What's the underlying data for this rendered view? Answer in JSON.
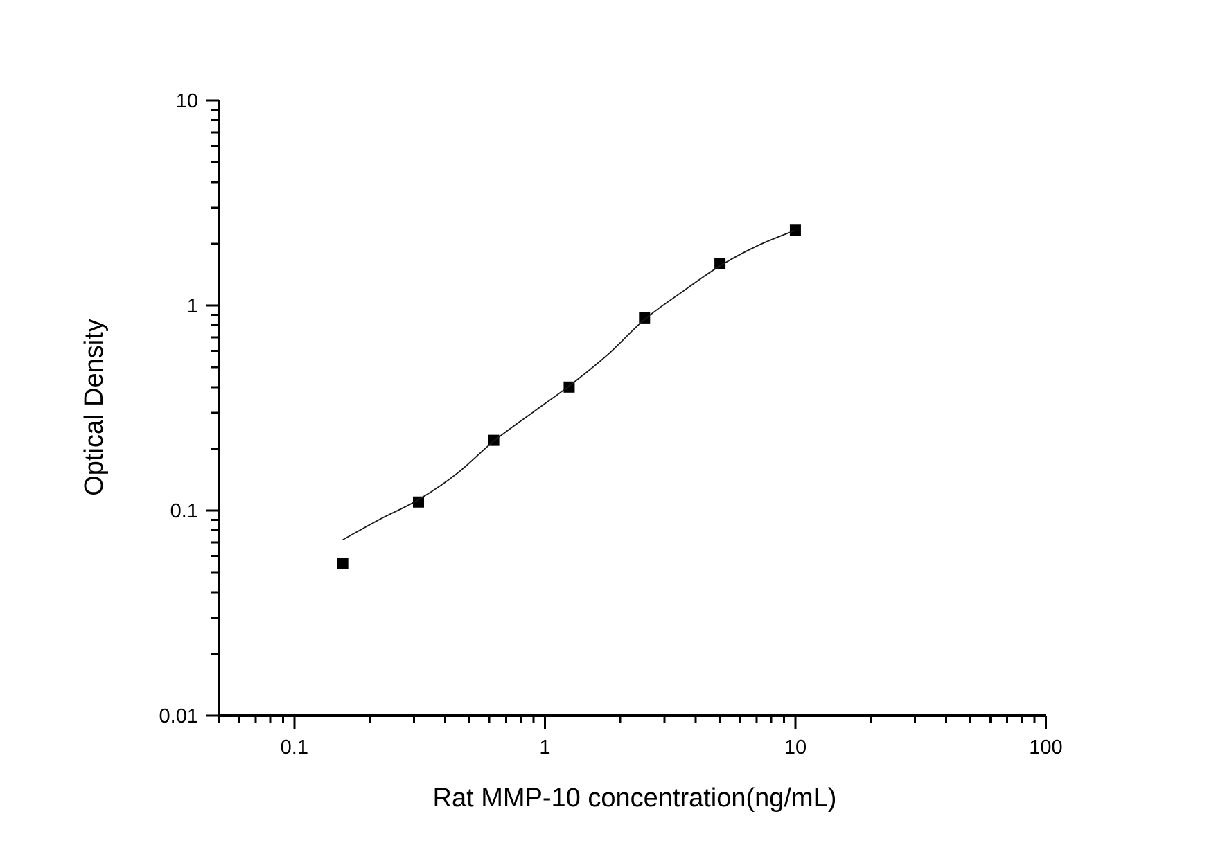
{
  "figure": {
    "background_color": "#ffffff",
    "axis_color": "#000000",
    "tick_color": "#000000",
    "marker_color": "#000000",
    "curve_color": "#1a1a1a",
    "text_color": "#000000"
  },
  "chart_data": {
    "type": "scatter",
    "title": "",
    "xlabel": "Rat MMP-10 concentration(ng/mL)",
    "ylabel": "Optical Density",
    "x_scale": "log",
    "y_scale": "log",
    "xlim": [
      0.05,
      100
    ],
    "ylim": [
      0.01,
      10
    ],
    "grid": false,
    "legend": null,
    "x_tick_labels": [
      {
        "value": 0.1,
        "label": "0.1"
      },
      {
        "value": 1,
        "label": "1"
      },
      {
        "value": 10,
        "label": "10"
      },
      {
        "value": 100,
        "label": "100"
      }
    ],
    "y_tick_labels": [
      {
        "value": 0.01,
        "label": "0.01"
      },
      {
        "value": 0.1,
        "label": "0.1"
      },
      {
        "value": 1,
        "label": "1"
      },
      {
        "value": 10,
        "label": "10"
      }
    ],
    "series": [
      {
        "name": "standard-points",
        "kind": "scatter",
        "marker": "square",
        "marker_size_px": 16,
        "points": [
          {
            "x": 0.156,
            "y": 0.055
          },
          {
            "x": 0.313,
            "y": 0.11
          },
          {
            "x": 0.625,
            "y": 0.22
          },
          {
            "x": 1.25,
            "y": 0.4
          },
          {
            "x": 2.5,
            "y": 0.87
          },
          {
            "x": 5,
            "y": 1.6
          },
          {
            "x": 10,
            "y": 2.33
          }
        ]
      },
      {
        "name": "fit-curve",
        "kind": "line",
        "points": [
          {
            "x": 0.156,
            "y": 0.072
          },
          {
            "x": 0.219,
            "y": 0.0905
          },
          {
            "x": 0.313,
            "y": 0.113
          },
          {
            "x": 0.447,
            "y": 0.152
          },
          {
            "x": 0.625,
            "y": 0.218
          },
          {
            "x": 0.891,
            "y": 0.3
          },
          {
            "x": 1.25,
            "y": 0.405
          },
          {
            "x": 1.78,
            "y": 0.575
          },
          {
            "x": 2.5,
            "y": 0.855
          },
          {
            "x": 3.55,
            "y": 1.17
          },
          {
            "x": 5,
            "y": 1.56
          },
          {
            "x": 7.08,
            "y": 1.96
          },
          {
            "x": 10,
            "y": 2.33
          }
        ]
      }
    ]
  }
}
